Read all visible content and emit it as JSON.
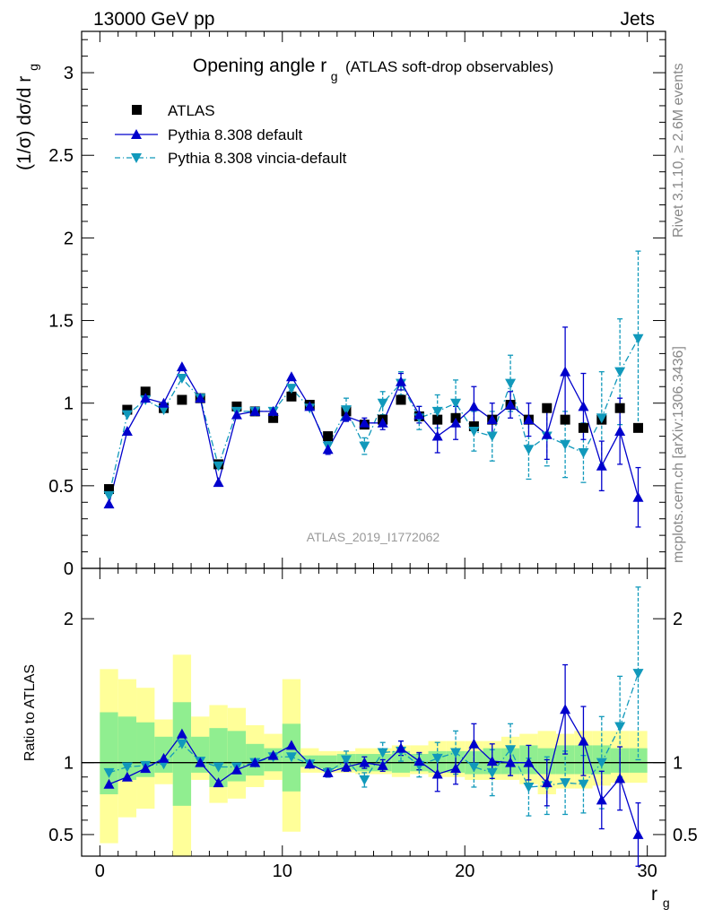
{
  "header": {
    "left": "13000 GeV pp",
    "right": "Jets"
  },
  "title": {
    "main": "Opening angle r",
    "sub": "g",
    "suffix": "(ATLAS soft-drop observables)"
  },
  "side_labels": {
    "rivet": "Rivet 3.1.10, ≥ 2.6M events",
    "mcplots": "mcplots.cern.ch [arXiv:1306.3436]"
  },
  "watermark": "ATLAS_2019_I1772062",
  "colors": {
    "data": "#000000",
    "default": "#0000cc",
    "vincia": "#1199bb",
    "band_green": "#90ee90",
    "band_yellow": "#ffff99"
  },
  "chart_data": [
    {
      "type": "scatter",
      "panel": "main",
      "ylabel": {
        "main": "(1/σ) dσ/d r",
        "sub": "g"
      },
      "ylim": [
        0,
        3.25
      ],
      "xlim": [
        -1,
        31
      ],
      "yticks": [
        "0",
        "0.5",
        "1",
        "1.5",
        "2",
        "2.5",
        "3"
      ],
      "x": [
        0.5,
        1.5,
        2.5,
        3.5,
        4.5,
        5.5,
        6.5,
        7.5,
        8.5,
        9.5,
        10.5,
        11.5,
        12.5,
        13.5,
        14.5,
        15.5,
        16.5,
        17.5,
        18.5,
        19.5,
        20.5,
        21.5,
        22.5,
        23.5,
        24.5,
        25.5,
        26.5,
        27.5,
        28.5,
        29.5
      ],
      "series": [
        {
          "name": "ATLAS",
          "values": [
            0.48,
            0.96,
            1.07,
            0.97,
            1.02,
            1.03,
            0.63,
            0.98,
            0.95,
            0.91,
            1.04,
            0.99,
            0.8,
            0.95,
            0.87,
            0.9,
            1.02,
            0.92,
            0.9,
            0.91,
            0.86,
            0.9,
            0.99,
            0.9,
            0.97,
            0.9,
            0.85,
            0.9,
            0.97,
            0.85
          ]
        },
        {
          "name": "Pythia 8.308 default",
          "values": [
            0.39,
            0.83,
            1.03,
            1.0,
            1.22,
            1.03,
            0.52,
            0.93,
            0.95,
            0.95,
            1.16,
            0.98,
            0.72,
            0.92,
            0.88,
            0.88,
            1.13,
            0.93,
            0.8,
            0.88,
            0.98,
            0.9,
            0.99,
            0.9,
            0.81,
            1.19,
            0.98,
            0.62,
            0.83,
            0.43
          ],
          "errors": [
            0.01,
            0.01,
            0.01,
            0.01,
            0.01,
            0.01,
            0.01,
            0.01,
            0.01,
            0.01,
            0.01,
            0.01,
            0.03,
            0.03,
            0.03,
            0.04,
            0.05,
            0.05,
            0.1,
            0.1,
            0.12,
            0.1,
            0.08,
            0.1,
            0.15,
            0.27,
            0.2,
            0.15,
            0.2,
            0.18
          ]
        },
        {
          "name": "Pythia 8.308 vincia-default",
          "values": [
            0.44,
            0.93,
            1.02,
            0.96,
            1.15,
            1.03,
            0.62,
            0.95,
            0.95,
            0.95,
            1.09,
            0.97,
            0.74,
            0.96,
            0.74,
            1.0,
            1.12,
            0.91,
            0.95,
            1.0,
            0.83,
            0.8,
            1.12,
            0.72,
            0.8,
            0.75,
            0.7,
            0.91,
            1.19,
            1.39
          ],
          "errors": [
            0.01,
            0.01,
            0.01,
            0.01,
            0.01,
            0.01,
            0.01,
            0.01,
            0.01,
            0.01,
            0.01,
            0.01,
            0.03,
            0.07,
            0.05,
            0.07,
            0.07,
            0.07,
            0.1,
            0.14,
            0.12,
            0.15,
            0.17,
            0.18,
            0.18,
            0.2,
            0.18,
            0.28,
            0.32,
            0.53
          ]
        }
      ]
    },
    {
      "type": "scatter",
      "panel": "ratio",
      "ylabel": "Ratio to ATLAS",
      "xlabel": {
        "main": "r",
        "sub": "g"
      },
      "xlim": [
        -1,
        31
      ],
      "ylim": [
        0.35,
        2.35
      ],
      "xticks": [
        "0",
        "10",
        "20",
        "30"
      ],
      "yticks": [
        "0.5",
        "1",
        "2"
      ],
      "x": [
        0.5,
        1.5,
        2.5,
        3.5,
        4.5,
        5.5,
        6.5,
        7.5,
        8.5,
        9.5,
        10.5,
        11.5,
        12.5,
        13.5,
        14.5,
        15.5,
        16.5,
        17.5,
        18.5,
        19.5,
        20.5,
        21.5,
        22.5,
        23.5,
        24.5,
        25.5,
        26.5,
        27.5,
        28.5,
        29.5
      ],
      "band_green": [
        [
          0.78,
          1.35
        ],
        [
          0.88,
          1.32
        ],
        [
          0.9,
          1.28
        ],
        [
          0.93,
          1.18
        ],
        [
          0.7,
          1.42
        ],
        [
          0.93,
          1.18
        ],
        [
          0.83,
          1.24
        ],
        [
          0.87,
          1.22
        ],
        [
          0.91,
          1.13
        ],
        [
          0.94,
          1.1
        ],
        [
          0.8,
          1.27
        ],
        [
          0.97,
          1.05
        ],
        [
          0.96,
          1.05
        ],
        [
          0.95,
          1.06
        ],
        [
          0.94,
          1.06
        ],
        [
          0.94,
          1.06
        ],
        [
          0.93,
          1.08
        ],
        [
          0.94,
          1.06
        ],
        [
          0.93,
          1.08
        ],
        [
          0.93,
          1.08
        ],
        [
          0.92,
          1.08
        ],
        [
          0.92,
          1.1
        ],
        [
          0.92,
          1.1
        ],
        [
          0.92,
          1.12
        ],
        [
          0.92,
          1.1
        ],
        [
          0.92,
          1.12
        ],
        [
          0.92,
          1.12
        ],
        [
          0.92,
          1.12
        ],
        [
          0.93,
          1.1
        ],
        [
          0.93,
          1.1
        ]
      ],
      "band_yellow": [
        [
          0.44,
          1.65
        ],
        [
          0.62,
          1.58
        ],
        [
          0.68,
          1.52
        ],
        [
          0.85,
          1.3
        ],
        [
          0.3,
          1.75
        ],
        [
          0.88,
          1.32
        ],
        [
          0.72,
          1.4
        ],
        [
          0.75,
          1.38
        ],
        [
          0.83,
          1.26
        ],
        [
          0.88,
          1.2
        ],
        [
          0.52,
          1.58
        ],
        [
          0.93,
          1.1
        ],
        [
          0.93,
          1.08
        ],
        [
          0.93,
          1.08
        ],
        [
          0.92,
          1.1
        ],
        [
          0.92,
          1.1
        ],
        [
          0.9,
          1.12
        ],
        [
          0.92,
          1.12
        ],
        [
          0.9,
          1.15
        ],
        [
          0.9,
          1.15
        ],
        [
          0.88,
          1.15
        ],
        [
          0.88,
          1.15
        ],
        [
          0.88,
          1.18
        ],
        [
          0.85,
          1.2
        ],
        [
          0.78,
          1.22
        ],
        [
          0.82,
          1.2
        ],
        [
          0.82,
          1.22
        ],
        [
          0.84,
          1.22
        ],
        [
          0.86,
          1.22
        ],
        [
          0.86,
          1.22
        ]
      ],
      "series": [
        {
          "name": "Pythia 8.308 default",
          "values": [
            0.85,
            0.9,
            0.96,
            1.03,
            1.2,
            1.0,
            0.86,
            0.95,
            1.0,
            1.05,
            1.12,
            0.99,
            0.93,
            0.97,
            1.0,
            0.98,
            1.1,
            1.01,
            0.92,
            0.96,
            1.13,
            1.01,
            1.0,
            1.0,
            0.86,
            1.37,
            1.15,
            0.74,
            0.89,
            0.5
          ],
          "errors": [
            0.01,
            0.01,
            0.01,
            0.01,
            0.01,
            0.01,
            0.01,
            0.01,
            0.01,
            0.01,
            0.01,
            0.01,
            0.03,
            0.03,
            0.04,
            0.04,
            0.05,
            0.06,
            0.12,
            0.11,
            0.14,
            0.12,
            0.09,
            0.12,
            0.16,
            0.31,
            0.24,
            0.2,
            0.22,
            0.22
          ]
        },
        {
          "name": "Pythia 8.308 vincia-default",
          "values": [
            0.93,
            0.97,
            0.98,
            0.99,
            1.13,
            1.01,
            0.97,
            0.97,
            1.0,
            1.04,
            1.04,
            0.99,
            0.93,
            1.02,
            0.88,
            1.07,
            1.08,
            0.98,
            1.03,
            1.07,
            0.97,
            0.93,
            1.09,
            0.83,
            0.84,
            0.86,
            0.85,
            1.0,
            1.25,
            1.62
          ],
          "errors": [
            0.01,
            0.01,
            0.01,
            0.01,
            0.01,
            0.01,
            0.01,
            0.01,
            0.01,
            0.01,
            0.01,
            0.01,
            0.03,
            0.06,
            0.05,
            0.07,
            0.07,
            0.08,
            0.11,
            0.15,
            0.14,
            0.16,
            0.18,
            0.2,
            0.2,
            0.22,
            0.2,
            0.32,
            0.35,
            0.6
          ]
        }
      ]
    }
  ]
}
